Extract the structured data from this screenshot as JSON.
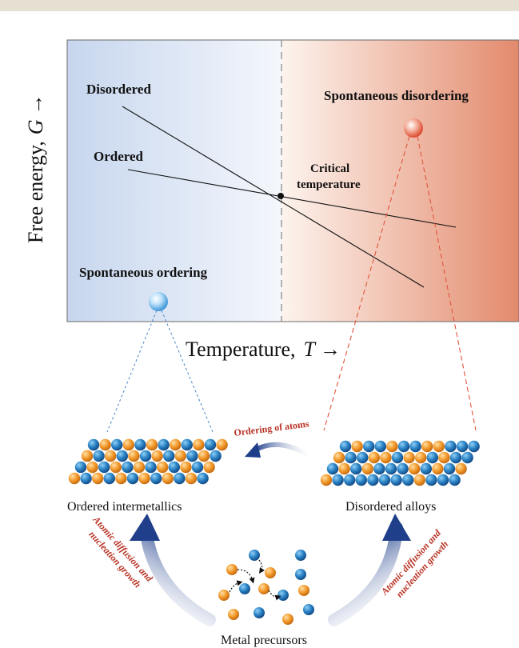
{
  "figure": {
    "y_axis_label": "Free energy,",
    "y_axis_symbol": "G",
    "x_axis_label": "Temperature,",
    "x_axis_symbol": "T",
    "arrow_glyph": "→",
    "curve_label_disordered": "Disordered",
    "curve_label_ordered": "Ordered",
    "critical_label_line1": "Critical",
    "critical_label_line2": "temperature",
    "region_label_ordering": "Spontaneous ordering",
    "region_label_disordering": "Spontaneous disordering",
    "ordering_arrow_label": "Ordering of atoms",
    "ordered_caption": "Ordered intermetallics",
    "disordered_caption": "Disordered alloys",
    "precursor_caption": "Metal precursors",
    "left_growth_line1": "Atomic diffusion and",
    "left_growth_line2": "nucleation growth",
    "right_growth_line1": "Atomic diffusion and",
    "right_growth_line2": "nucleation growth"
  },
  "colors": {
    "cold_region": "#c9d8ef",
    "hot_region": "#e48a6e",
    "atom_blue": "#2a78b8",
    "atom_orange": "#f09a2e",
    "label_red": "#b83224",
    "arrow_navy": "#1f3f8a",
    "orb_blue": "#4da7e6",
    "orb_red": "#e0553a"
  }
}
